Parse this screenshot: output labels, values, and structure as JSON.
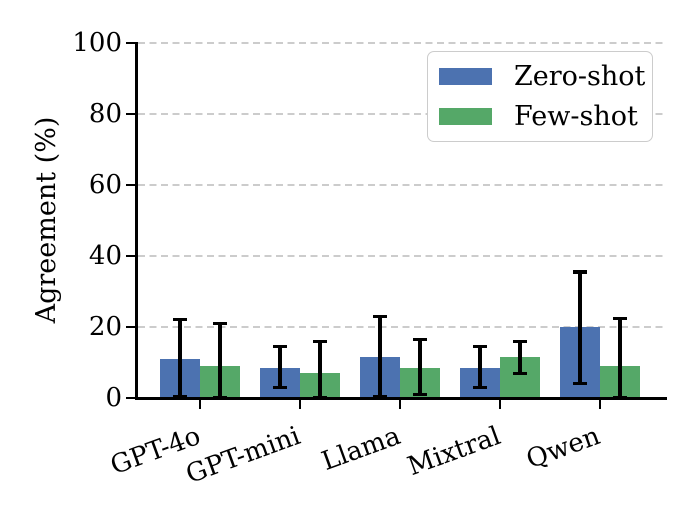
{
  "figure": {
    "background_color": "#ffffff",
    "text_color": "#000000",
    "grid_color": "#cccccc"
  },
  "chart_data": {
    "type": "bar",
    "title": "",
    "xlabel": "",
    "ylabel": "Agreement (%)",
    "ylim": [
      0,
      100
    ],
    "yticks": [
      0,
      20,
      40,
      60,
      80,
      100
    ],
    "grid": "horizontal dashed lines at each y tick",
    "legend_position": "upper-right",
    "error_bar_color": "#000000",
    "categories": [
      "GPT-4o",
      "GPT-mini",
      "Llama",
      "Mixtral",
      "Qwen"
    ],
    "series": [
      {
        "name": "Zero-shot",
        "color": "#4C72B0",
        "values": [
          11,
          8.5,
          11.5,
          8.5,
          20
        ],
        "error_low": [
          0.5,
          3,
          0.5,
          3,
          4
        ],
        "error_high": [
          22,
          14.5,
          23,
          14.5,
          35.5
        ]
      },
      {
        "name": "Few-shot",
        "color": "#55A868",
        "values": [
          9,
          7,
          8.5,
          11.5,
          9
        ],
        "error_low": [
          0,
          0,
          1,
          7,
          0
        ],
        "error_high": [
          21,
          16,
          16.5,
          16,
          22.5
        ]
      }
    ]
  }
}
